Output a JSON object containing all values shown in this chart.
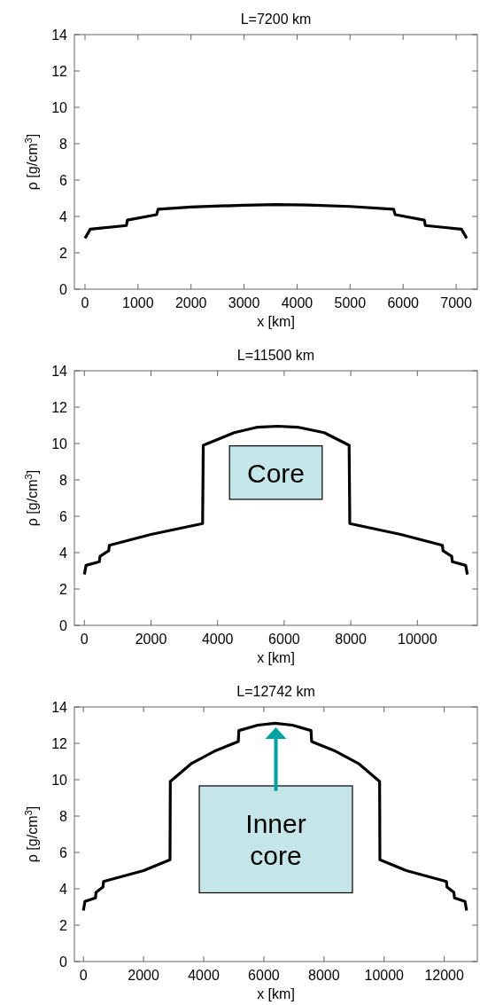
{
  "chart_data": [
    {
      "type": "line",
      "title": "L=7200 km",
      "xlabel": "x [km]",
      "ylabel": "ρ [g/cm$^{3}$]",
      "xlim": [
        -200,
        7400
      ],
      "xticks": [
        0,
        1000,
        2000,
        3000,
        4000,
        5000,
        6000,
        7000
      ],
      "ylim": [
        0,
        14
      ],
      "yticks": [
        0,
        2,
        4,
        6,
        8,
        10,
        12,
        14
      ],
      "series": [
        {
          "color": "#000000",
          "x": [
            0,
            100,
            780,
            800,
            1350,
            1380,
            2000,
            3000,
            3600,
            4200,
            5000,
            5820,
            5850,
            6400,
            6420,
            7100,
            7200
          ],
          "values": [
            2.8,
            3.3,
            3.5,
            3.8,
            4.1,
            4.4,
            4.52,
            4.62,
            4.65,
            4.63,
            4.55,
            4.4,
            4.1,
            3.8,
            3.5,
            3.3,
            2.8
          ]
        }
      ]
    },
    {
      "type": "line",
      "title": "L=11500 km",
      "xlabel": "x [km]",
      "ylabel": "ρ [g/cm$^{3}$]",
      "xlim": [
        -300,
        11800
      ],
      "xticks": [
        0,
        2000,
        4000,
        6000,
        8000,
        10000
      ],
      "ylim": [
        0,
        14
      ],
      "yticks": [
        0,
        2,
        4,
        6,
        8,
        10,
        12,
        14
      ],
      "annotations": [
        "Core"
      ],
      "series": [
        {
          "color": "#000000",
          "x": [
            0,
            50,
            450,
            470,
            730,
            750,
            2000,
            3550,
            3570,
            4500,
            5200,
            5800,
            6400,
            7200,
            7950,
            7970,
            9500,
            10750,
            10770,
            11030,
            11050,
            11450,
            11500
          ],
          "values": [
            2.8,
            3.3,
            3.5,
            3.8,
            4.1,
            4.4,
            5.0,
            5.6,
            9.9,
            10.6,
            10.9,
            10.95,
            10.9,
            10.6,
            9.9,
            5.6,
            5.0,
            4.4,
            4.1,
            3.8,
            3.5,
            3.3,
            2.8
          ]
        }
      ]
    },
    {
      "type": "line",
      "title": "L=12742 km",
      "xlabel": "x [km]",
      "ylabel": "ρ [g/cm$^{3}$]",
      "xlim": [
        -300,
        13100
      ],
      "xticks": [
        0,
        2000,
        4000,
        6000,
        8000,
        10000,
        12000
      ],
      "ylim": [
        0,
        14
      ],
      "yticks": [
        0,
        2,
        4,
        6,
        8,
        10,
        12,
        14
      ],
      "annotations": [
        "Inner core"
      ],
      "series": [
        {
          "color": "#000000",
          "x": [
            0,
            50,
            400,
            420,
            650,
            670,
            2000,
            2880,
            2890,
            3600,
            4400,
            5150,
            5170,
            5800,
            6371,
            6950,
            7570,
            7590,
            8340,
            9140,
            9850,
            9860,
            10740,
            12070,
            12090,
            12320,
            12340,
            12690,
            12742
          ],
          "values": [
            2.8,
            3.3,
            3.5,
            3.8,
            4.1,
            4.4,
            5.0,
            5.6,
            9.9,
            10.9,
            11.6,
            12.1,
            12.7,
            13.0,
            13.1,
            13.0,
            12.7,
            12.1,
            11.6,
            10.9,
            9.9,
            5.6,
            5.0,
            4.4,
            4.1,
            3.8,
            3.5,
            3.3,
            2.8
          ]
        }
      ]
    }
  ]
}
